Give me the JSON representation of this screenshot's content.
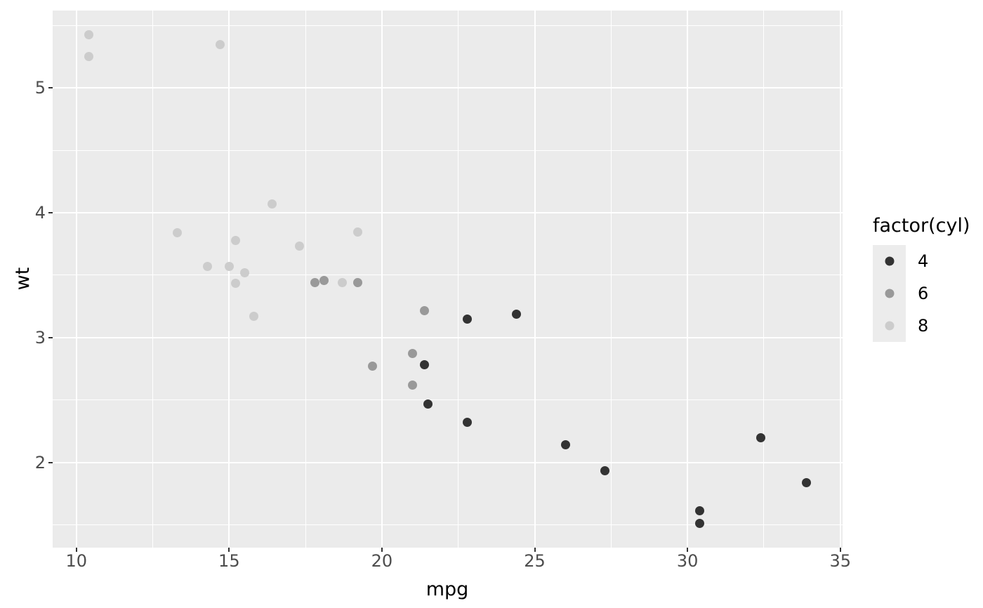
{
  "chart_data": {
    "type": "scatter",
    "title": "",
    "xlabel": "mpg",
    "ylabel": "wt",
    "xlim": [
      9.225,
      35.075
    ],
    "ylim": [
      1.3175,
      5.6195
    ],
    "x_ticks": [
      10,
      15,
      20,
      25,
      30,
      35
    ],
    "x_minor_ticks": [
      12.5,
      17.5,
      22.5,
      27.5,
      32.5
    ],
    "y_ticks": [
      2,
      3,
      4,
      5
    ],
    "y_minor_ticks": [
      1.5,
      2.5,
      3.5,
      4.5,
      5.5
    ],
    "grid": true,
    "legend": {
      "title": "factor(cyl)",
      "position": "right",
      "items": [
        {
          "label": "4",
          "color": "#333333"
        },
        {
          "label": "6",
          "color": "#999999"
        },
        {
          "label": "8",
          "color": "#CCCCCC"
        }
      ]
    },
    "series": [
      {
        "name": "4",
        "color": "#333333",
        "points": [
          [
            22.8,
            2.32
          ],
          [
            24.4,
            3.19
          ],
          [
            22.8,
            3.15
          ],
          [
            32.4,
            2.2
          ],
          [
            30.4,
            1.615
          ],
          [
            33.9,
            1.835
          ],
          [
            21.5,
            2.465
          ],
          [
            27.3,
            1.935
          ],
          [
            26.0,
            2.14
          ],
          [
            30.4,
            1.513
          ],
          [
            21.4,
            2.78
          ]
        ]
      },
      {
        "name": "6",
        "color": "#999999",
        "points": [
          [
            21.0,
            2.62
          ],
          [
            21.0,
            2.875
          ],
          [
            21.4,
            3.215
          ],
          [
            18.1,
            3.46
          ],
          [
            19.2,
            3.44
          ],
          [
            17.8,
            3.44
          ],
          [
            19.7,
            2.77
          ]
        ]
      },
      {
        "name": "8",
        "color": "#CCCCCC",
        "points": [
          [
            18.7,
            3.44
          ],
          [
            14.3,
            3.57
          ],
          [
            16.4,
            4.07
          ],
          [
            17.3,
            3.73
          ],
          [
            15.2,
            3.78
          ],
          [
            10.4,
            5.25
          ],
          [
            10.4,
            5.424
          ],
          [
            14.7,
            5.345
          ],
          [
            15.5,
            3.52
          ],
          [
            15.2,
            3.435
          ],
          [
            13.3,
            3.84
          ],
          [
            19.2,
            3.845
          ],
          [
            15.8,
            3.17
          ],
          [
            15.0,
            3.57
          ]
        ]
      }
    ],
    "colors": {
      "panel_bg": "#EBEBEB",
      "grid": "#FFFFFF",
      "tick_label": "#4D4D4D",
      "axis_title": "#000000",
      "tick_mark": "#333333",
      "legend_key_bg": "#ECECEC"
    }
  }
}
